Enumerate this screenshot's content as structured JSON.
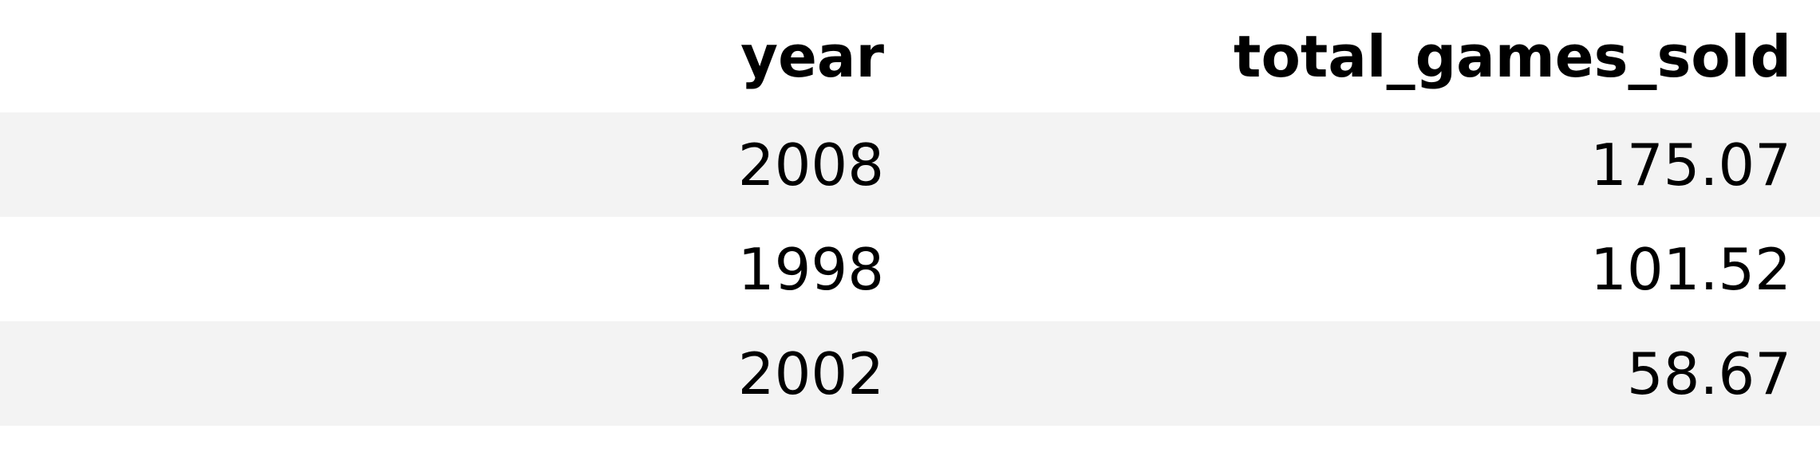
{
  "table": {
    "columns": [
      "year",
      "total_games_sold"
    ],
    "rows": [
      {
        "year": "2008",
        "total_games_sold": "175.07"
      },
      {
        "year": "1998",
        "total_games_sold": "101.52"
      },
      {
        "year": "2002",
        "total_games_sold": "58.67"
      }
    ]
  },
  "colors": {
    "stripe": "#f3f3f3",
    "background": "#ffffff",
    "text": "#000000"
  }
}
